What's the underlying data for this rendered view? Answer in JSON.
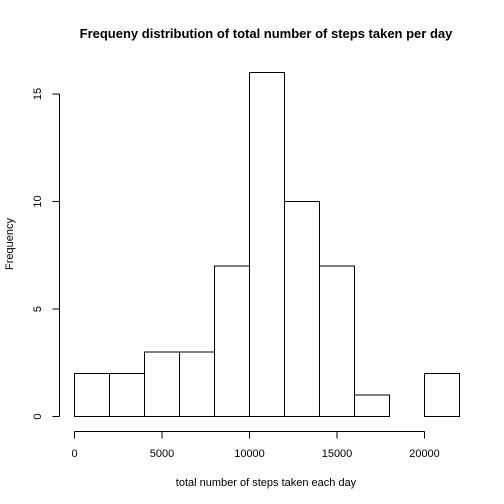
{
  "chart_data": {
    "type": "bar",
    "title": "Frequeny distribution of total number of steps taken per day",
    "xlabel": "total number of steps taken each day",
    "ylabel": "Frequency",
    "bins": [
      {
        "x0": 0,
        "x1": 2000,
        "count": 2
      },
      {
        "x0": 2000,
        "x1": 4000,
        "count": 2
      },
      {
        "x0": 4000,
        "x1": 6000,
        "count": 3
      },
      {
        "x0": 6000,
        "x1": 8000,
        "count": 3
      },
      {
        "x0": 8000,
        "x1": 10000,
        "count": 7
      },
      {
        "x0": 10000,
        "x1": 12000,
        "count": 16
      },
      {
        "x0": 12000,
        "x1": 14000,
        "count": 10
      },
      {
        "x0": 14000,
        "x1": 16000,
        "count": 7
      },
      {
        "x0": 16000,
        "x1": 18000,
        "count": 1
      },
      {
        "x0": 18000,
        "x1": 20000,
        "count": 0
      },
      {
        "x0": 20000,
        "x1": 22000,
        "count": 2
      }
    ],
    "xticks": [
      0,
      5000,
      10000,
      15000,
      20000
    ],
    "yticks": [
      0,
      5,
      10,
      15
    ],
    "xlim": [
      0,
      22000
    ],
    "ylim": [
      0,
      16
    ],
    "grid": false,
    "bar_fill": "#ffffff",
    "bar_stroke": "#000000"
  }
}
